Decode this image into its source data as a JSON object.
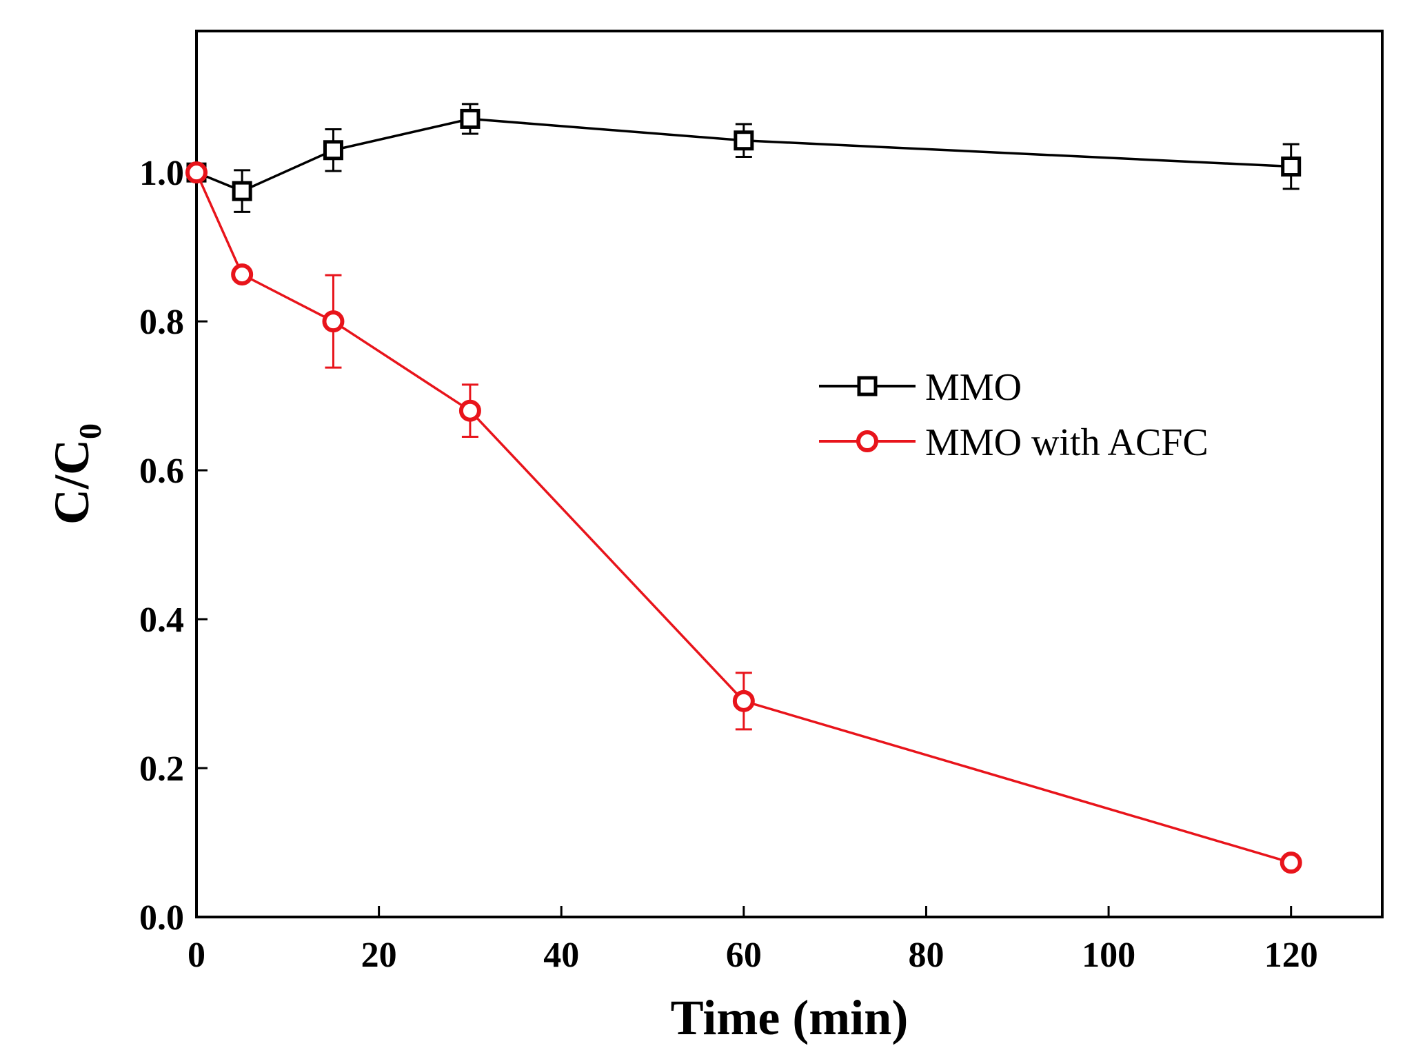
{
  "chart_data": {
    "type": "line",
    "xlabel": "Time (min)",
    "ylabel_main": "C/C",
    "ylabel_sub": "0",
    "xlim": [
      0,
      130
    ],
    "ylim": [
      0.0,
      1.19
    ],
    "x_ticks": [
      0,
      20,
      40,
      60,
      80,
      100,
      120
    ],
    "y_ticks": [
      0.0,
      0.2,
      0.4,
      0.6,
      0.8,
      1.0
    ],
    "x_tick_labels": [
      "0",
      "20",
      "40",
      "60",
      "80",
      "100",
      "120"
    ],
    "y_tick_labels": [
      "0.0",
      "0.2",
      "0.4",
      "0.6",
      "0.8",
      "1.0"
    ],
    "grid": false,
    "legend_position": "right",
    "series": [
      {
        "name": "MMO",
        "color": "#000000",
        "marker": "square",
        "x": [
          0,
          5,
          15,
          30,
          60,
          120
        ],
        "y": [
          1.0,
          0.975,
          1.03,
          1.072,
          1.043,
          1.008
        ],
        "err": [
          0.0,
          0.028,
          0.028,
          0.02,
          0.022,
          0.03
        ]
      },
      {
        "name": "MMO with ACFC",
        "color": "#e8141b",
        "marker": "circle",
        "x": [
          0,
          5,
          15,
          30,
          60,
          120
        ],
        "y": [
          1.0,
          0.863,
          0.8,
          0.68,
          0.29,
          0.073
        ],
        "err": [
          0.0,
          0.0,
          0.062,
          0.035,
          0.038,
          0.0
        ]
      }
    ]
  }
}
